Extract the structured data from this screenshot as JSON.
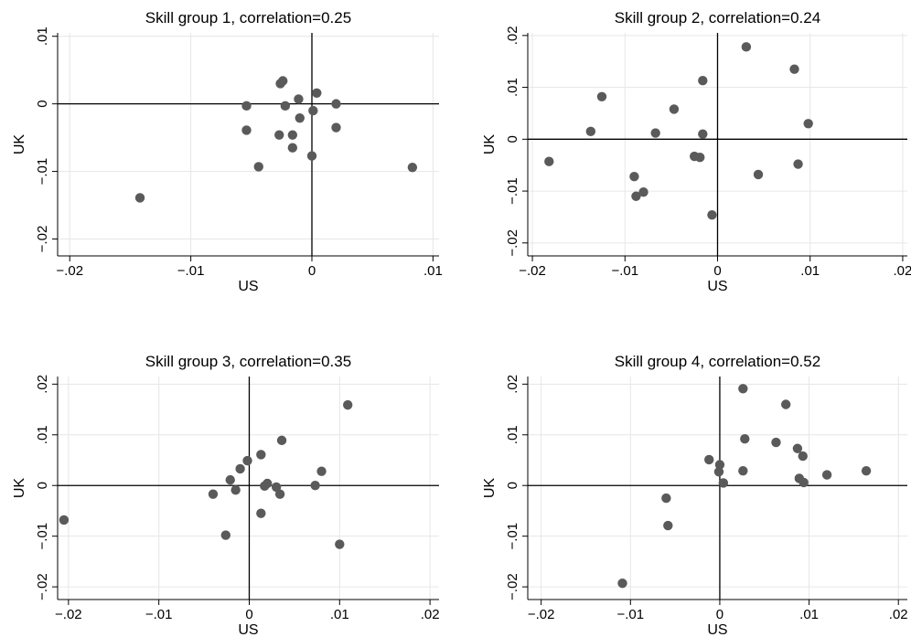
{
  "chart_data": [
    {
      "type": "scatter",
      "title": "Skill group 1, correlation=0.25",
      "xlabel": "US",
      "ylabel": "UK",
      "xlim": [
        -0.021,
        0.0105
      ],
      "ylim": [
        -0.0225,
        0.0105
      ],
      "xticks": [
        -0.02,
        -0.01,
        0,
        0.01
      ],
      "xtick_labels": [
        "-.02",
        "-.01",
        "0",
        ".01"
      ],
      "yticks": [
        -0.02,
        -0.01,
        0,
        0.01
      ],
      "ytick_labels": [
        "-.02",
        "-.01",
        "0",
        ".01"
      ],
      "grid": true,
      "points": [
        {
          "x": -0.0142,
          "y": -0.0139
        },
        {
          "x": -0.0054,
          "y": -0.0003
        },
        {
          "x": -0.0054,
          "y": -0.0039
        },
        {
          "x": -0.0044,
          "y": -0.0093
        },
        {
          "x": -0.0026,
          "y": 0.003
        },
        {
          "x": -0.0024,
          "y": 0.0034
        },
        {
          "x": -0.0022,
          "y": -0.0003
        },
        {
          "x": -0.0027,
          "y": -0.0046
        },
        {
          "x": -0.0016,
          "y": -0.0046
        },
        {
          "x": -0.0016,
          "y": -0.0065
        },
        {
          "x": -0.0011,
          "y": 0.0007
        },
        {
          "x": -0.001,
          "y": -0.0021
        },
        {
          "x": 0.0,
          "y": -0.0077
        },
        {
          "x": 0.0001,
          "y": -0.001
        },
        {
          "x": 0.0004,
          "y": 0.0016
        },
        {
          "x": 0.002,
          "y": 0.0
        },
        {
          "x": 0.002,
          "y": -0.0035
        },
        {
          "x": 0.0083,
          "y": -0.0094
        }
      ]
    },
    {
      "type": "scatter",
      "title": "Skill group 2, correlation=0.24",
      "xlabel": "US",
      "ylabel": "UK",
      "xlim": [
        -0.0205,
        0.0205
      ],
      "ylim": [
        -0.0225,
        0.0205
      ],
      "xticks": [
        -0.02,
        -0.01,
        0,
        0.01,
        0.02
      ],
      "xtick_labels": [
        "-.02",
        "-.01",
        "0",
        ".01",
        ".02"
      ],
      "yticks": [
        -0.02,
        -0.01,
        0,
        0.01,
        0.02
      ],
      "ytick_labels": [
        "-.02",
        "-.01",
        "0",
        ".01",
        ".02"
      ],
      "grid": true,
      "points": [
        {
          "x": -0.0182,
          "y": -0.0043
        },
        {
          "x": -0.0137,
          "y": 0.0015
        },
        {
          "x": -0.0125,
          "y": 0.0082
        },
        {
          "x": -0.009,
          "y": -0.0072
        },
        {
          "x": -0.0088,
          "y": -0.011
        },
        {
          "x": -0.008,
          "y": -0.0102
        },
        {
          "x": -0.0067,
          "y": 0.0012
        },
        {
          "x": -0.0047,
          "y": 0.0058
        },
        {
          "x": -0.0025,
          "y": -0.0033
        },
        {
          "x": -0.0019,
          "y": -0.0035
        },
        {
          "x": -0.0016,
          "y": 0.0113
        },
        {
          "x": -0.0016,
          "y": 0.001
        },
        {
          "x": -0.0006,
          "y": -0.0146
        },
        {
          "x": 0.0031,
          "y": 0.0178
        },
        {
          "x": 0.0044,
          "y": -0.0068
        },
        {
          "x": 0.0083,
          "y": 0.0135
        },
        {
          "x": 0.0087,
          "y": -0.0048
        },
        {
          "x": 0.0098,
          "y": 0.003
        }
      ]
    },
    {
      "type": "scatter",
      "title": "Skill group 3, correlation=0.35",
      "xlabel": "US",
      "ylabel": "UK",
      "xlim": [
        -0.0212,
        0.021
      ],
      "ylim": [
        -0.0225,
        0.0215
      ],
      "xticks": [
        -0.02,
        -0.01,
        0,
        0.01,
        0.02
      ],
      "xtick_labels": [
        "-.02",
        "-.01",
        "0",
        ".01",
        ".02"
      ],
      "yticks": [
        -0.02,
        -0.01,
        0,
        0.01,
        0.02
      ],
      "ytick_labels": [
        "-.02",
        "-.01",
        "0",
        ".01",
        ".02"
      ],
      "grid": true,
      "points": [
        {
          "x": -0.0205,
          "y": -0.0068
        },
        {
          "x": -0.004,
          "y": -0.0017
        },
        {
          "x": -0.0026,
          "y": -0.0098
        },
        {
          "x": -0.0021,
          "y": 0.0011
        },
        {
          "x": -0.0015,
          "y": -0.0009
        },
        {
          "x": -0.001,
          "y": 0.0033
        },
        {
          "x": -0.0002,
          "y": 0.0049
        },
        {
          "x": 0.0013,
          "y": 0.0061
        },
        {
          "x": 0.0013,
          "y": -0.0055
        },
        {
          "x": 0.0017,
          "y": -0.0001
        },
        {
          "x": 0.002,
          "y": 0.0004
        },
        {
          "x": 0.003,
          "y": -0.0003
        },
        {
          "x": 0.0034,
          "y": -0.0017
        },
        {
          "x": 0.0036,
          "y": 0.0089
        },
        {
          "x": 0.0073,
          "y": 0.0
        },
        {
          "x": 0.008,
          "y": 0.0028
        },
        {
          "x": 0.01,
          "y": -0.0116
        },
        {
          "x": 0.0109,
          "y": 0.0159
        }
      ]
    },
    {
      "type": "scatter",
      "title": "Skill group 4, correlation=0.52",
      "xlabel": "US",
      "ylabel": "UK",
      "xlim": [
        -0.0215,
        0.021
      ],
      "ylim": [
        -0.0225,
        0.0215
      ],
      "xticks": [
        -0.02,
        -0.01,
        0,
        0.01,
        0.02
      ],
      "xtick_labels": [
        "-.02",
        "-.01",
        "0",
        ".01",
        ".02"
      ],
      "yticks": [
        -0.02,
        -0.01,
        0,
        0.01,
        0.02
      ],
      "ytick_labels": [
        "-.02",
        "-.01",
        "0",
        ".01",
        ".02"
      ],
      "grid": true,
      "points": [
        {
          "x": -0.0109,
          "y": -0.0193
        },
        {
          "x": -0.006,
          "y": -0.0025
        },
        {
          "x": -0.0058,
          "y": -0.0079
        },
        {
          "x": -0.0012,
          "y": 0.0051
        },
        {
          "x": -0.0001,
          "y": 0.0027
        },
        {
          "x": 0.0,
          "y": 0.0041
        },
        {
          "x": 0.0004,
          "y": 0.0005
        },
        {
          "x": 0.0026,
          "y": 0.0191
        },
        {
          "x": 0.0026,
          "y": 0.0029
        },
        {
          "x": 0.0028,
          "y": 0.0092
        },
        {
          "x": 0.0063,
          "y": 0.0085
        },
        {
          "x": 0.0074,
          "y": 0.016
        },
        {
          "x": 0.0087,
          "y": 0.0073
        },
        {
          "x": 0.0089,
          "y": 0.0014
        },
        {
          "x": 0.0093,
          "y": 0.0058
        },
        {
          "x": 0.0094,
          "y": 0.0006
        },
        {
          "x": 0.012,
          "y": 0.0021
        },
        {
          "x": 0.0164,
          "y": 0.0029
        }
      ]
    }
  ]
}
